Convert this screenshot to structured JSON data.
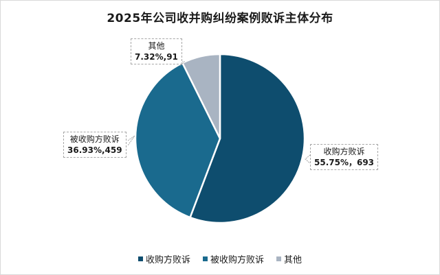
{
  "chart_data": {
    "type": "pie",
    "title": "2025年公司收并购纠纷案例败诉主体分布",
    "categories": [
      "收购方败诉",
      "被收购方败诉",
      "其他"
    ],
    "values": [
      693,
      459,
      91
    ],
    "percentages": [
      55.75,
      36.93,
      7.32
    ],
    "colors": [
      "#0e4d6e",
      "#1a6a8e",
      "#a9b4c2"
    ],
    "data_labels": [
      "55.75%，693",
      "36.93%,459",
      "7.32%,91"
    ],
    "legend_position": "bottom"
  },
  "title": "2025年公司收并购纠纷案例败诉主体分布",
  "labels": {
    "acquirer": {
      "name": "收购方败诉",
      "value": "55.75%，693"
    },
    "target": {
      "name": "被收购方败诉",
      "value": "36.93%,459"
    },
    "other": {
      "name": "其他",
      "value": "7.32%,91"
    }
  },
  "legend": [
    {
      "label": "收购方败诉",
      "color": "#0e4d6e"
    },
    {
      "label": "被收购方败诉",
      "color": "#1a6a8e"
    },
    {
      "label": "其他",
      "color": "#a9b4c2"
    }
  ]
}
